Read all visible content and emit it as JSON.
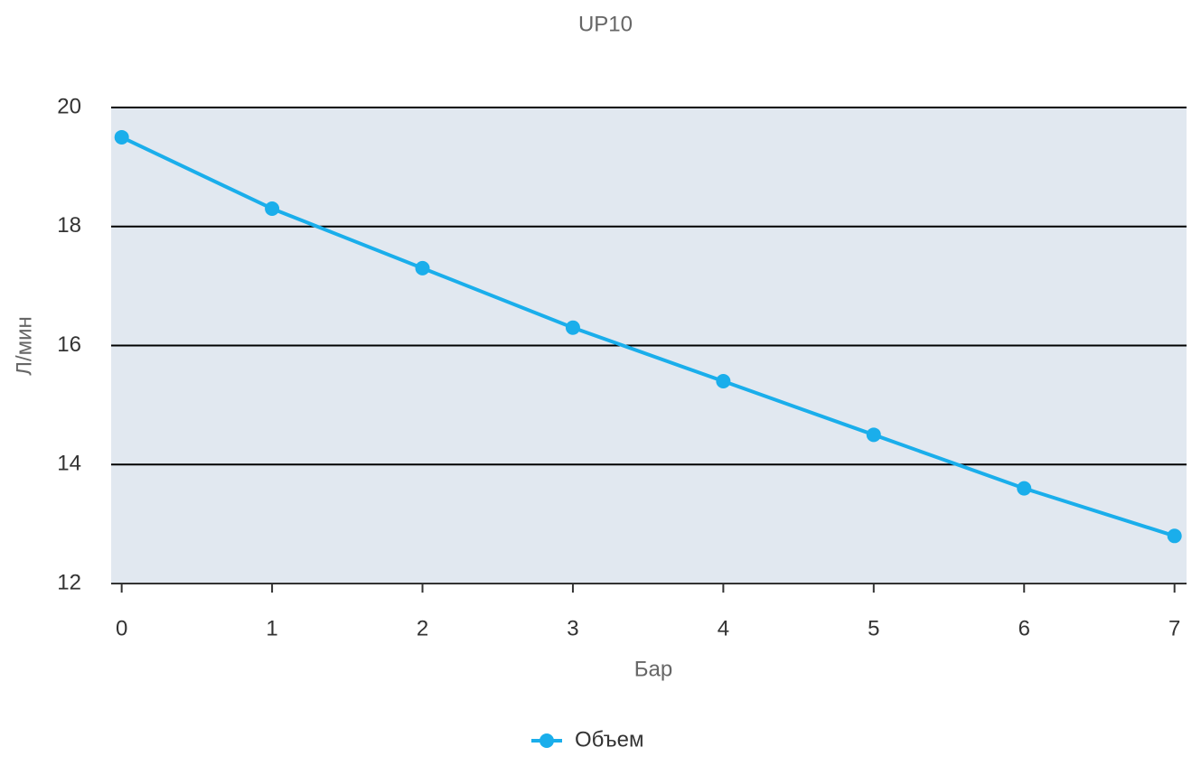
{
  "chart_data": {
    "type": "line",
    "title": "UP10",
    "x_label": "Бар",
    "y_label": "Л/мин",
    "x": [
      0,
      1,
      2,
      3,
      4,
      5,
      6,
      7
    ],
    "series": [
      {
        "name": "Объем",
        "color": "#1aaeeb",
        "values": [
          19.5,
          18.3,
          17.3,
          16.3,
          15.4,
          14.5,
          13.6,
          12.8
        ]
      }
    ],
    "xlim": [
      -0.07,
      7.08
    ],
    "xticks": [
      0,
      1,
      2,
      3,
      4,
      5,
      6,
      7
    ],
    "ylim": [
      12,
      20
    ],
    "yticks": [
      12,
      14,
      16,
      18,
      20
    ],
    "grid": true,
    "plot_background": "#e1e8f0",
    "legend": "bottom"
  }
}
